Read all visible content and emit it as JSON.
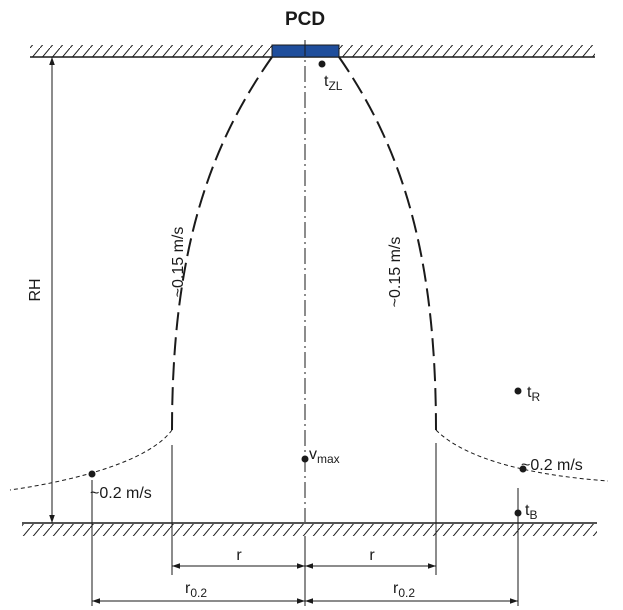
{
  "pcd_label": "PCD",
  "colors": {
    "pcd_fill": "#1f4e9c",
    "ink": "#1a1a1a"
  },
  "labels": {
    "t_zl": {
      "main": "t",
      "sub": "ZL"
    },
    "t_r": {
      "main": "t",
      "sub": "R"
    },
    "t_b": {
      "main": "t",
      "sub": "B"
    },
    "v_max": {
      "main": "v",
      "sub": "max"
    },
    "rh": "RH",
    "speed_outer": "~0.15 m/s",
    "speed_floor": "~0.2 m/s",
    "r": "r",
    "r02": {
      "main": "r",
      "sub": "0.2"
    }
  }
}
